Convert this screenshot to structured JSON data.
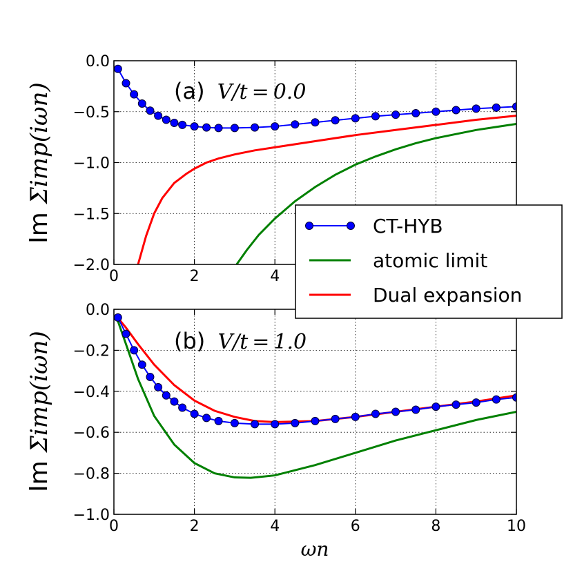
{
  "chart_data": [
    {
      "type": "line",
      "panel": "a",
      "annotation_prefix": "(a)",
      "annotation_math": "V/t = 0.0",
      "xlabel": "",
      "ylabel": "Im",
      "ylabel_math": "Σimp(iωn)",
      "xlim": [
        0,
        10
      ],
      "ylim": [
        -2.0,
        0.0
      ],
      "xticks": [
        0,
        2,
        4
      ],
      "xtick_labels": [
        "0",
        "2",
        "4"
      ],
      "yticks": [
        0.0,
        -0.5,
        -1.0,
        -1.5,
        -2.0
      ],
      "ytick_labels": [
        "0.0",
        "−0.5",
        "−1.0",
        "−1.5",
        "−2.0"
      ],
      "grid": true,
      "series": [
        {
          "name": "CT-HYB",
          "color": "#0000ff",
          "marker": "circle",
          "x": [
            0.1,
            0.3,
            0.5,
            0.7,
            0.9,
            1.1,
            1.3,
            1.5,
            1.7,
            2.0,
            2.3,
            2.6,
            3.0,
            3.5,
            4.0,
            4.5,
            5.0,
            5.5,
            6.0,
            6.5,
            7.0,
            7.5,
            8.0,
            8.5,
            9.0,
            9.5,
            10.0
          ],
          "y": [
            -0.08,
            -0.22,
            -0.33,
            -0.42,
            -0.49,
            -0.54,
            -0.58,
            -0.61,
            -0.63,
            -0.645,
            -0.655,
            -0.66,
            -0.66,
            -0.655,
            -0.645,
            -0.625,
            -0.605,
            -0.585,
            -0.565,
            -0.545,
            -0.53,
            -0.515,
            -0.5,
            -0.485,
            -0.47,
            -0.46,
            -0.45
          ]
        },
        {
          "name": "atomic limit",
          "color": "#008000",
          "x": [
            3.05,
            3.3,
            3.6,
            4.0,
            4.5,
            5.0,
            5.5,
            6.0,
            6.5,
            7.0,
            7.5,
            8.0,
            8.5,
            9.0,
            9.5,
            10.0
          ],
          "y": [
            -2.0,
            -1.86,
            -1.71,
            -1.55,
            -1.38,
            -1.24,
            -1.12,
            -1.02,
            -0.94,
            -0.87,
            -0.81,
            -0.76,
            -0.72,
            -0.68,
            -0.65,
            -0.62
          ]
        },
        {
          "name": "Dual expansion",
          "color": "#ff0000",
          "x": [
            0.6,
            0.8,
            1.0,
            1.2,
            1.5,
            1.8,
            2.0,
            2.3,
            2.6,
            3.0,
            3.5,
            4.0,
            5.0,
            6.0,
            7.0,
            8.0,
            9.0,
            10.0
          ],
          "y": [
            -2.0,
            -1.72,
            -1.5,
            -1.35,
            -1.2,
            -1.11,
            -1.06,
            -1.0,
            -0.96,
            -0.92,
            -0.88,
            -0.85,
            -0.79,
            -0.73,
            -0.68,
            -0.63,
            -0.58,
            -0.54
          ]
        }
      ],
      "legend": {
        "placement": "right",
        "entries": [
          "CT-HYB",
          "atomic limit",
          "Dual expansion"
        ]
      }
    },
    {
      "type": "line",
      "panel": "b",
      "annotation_prefix": "(b)",
      "annotation_math": "V/t = 1.0",
      "xlabel": "ωn",
      "ylabel": "Im",
      "ylabel_math": "Σimp(iωn)",
      "xlim": [
        0,
        10
      ],
      "ylim": [
        -1.0,
        0.0
      ],
      "xticks": [
        0,
        2,
        4,
        6,
        8,
        10
      ],
      "xtick_labels": [
        "0",
        "2",
        "4",
        "6",
        "8",
        "10"
      ],
      "yticks": [
        0.0,
        -0.2,
        -0.4,
        -0.6,
        -0.8,
        -1.0
      ],
      "ytick_labels": [
        "0.0",
        "−0.2",
        "−0.4",
        "−0.6",
        "−0.8",
        "−1.0"
      ],
      "grid": true,
      "series": [
        {
          "name": "CT-HYB",
          "color": "#0000ff",
          "marker": "circle",
          "x": [
            0.1,
            0.3,
            0.5,
            0.7,
            0.9,
            1.1,
            1.3,
            1.5,
            1.7,
            2.0,
            2.3,
            2.6,
            3.0,
            3.5,
            4.0,
            4.5,
            5.0,
            5.5,
            6.0,
            6.5,
            7.0,
            7.5,
            8.0,
            8.5,
            9.0,
            9.5,
            10.0
          ],
          "y": [
            -0.04,
            -0.12,
            -0.2,
            -0.27,
            -0.33,
            -0.38,
            -0.42,
            -0.45,
            -0.48,
            -0.51,
            -0.53,
            -0.545,
            -0.555,
            -0.56,
            -0.56,
            -0.555,
            -0.545,
            -0.535,
            -0.525,
            -0.51,
            -0.5,
            -0.49,
            -0.475,
            -0.465,
            -0.455,
            -0.44,
            -0.43
          ]
        },
        {
          "name": "atomic limit",
          "color": "#008000",
          "x": [
            0.05,
            0.3,
            0.6,
            1.0,
            1.5,
            2.0,
            2.5,
            3.0,
            3.4,
            4.0,
            5.0,
            6.0,
            7.0,
            8.0,
            9.0,
            10.0
          ],
          "y": [
            -0.03,
            -0.17,
            -0.34,
            -0.52,
            -0.66,
            -0.75,
            -0.8,
            -0.82,
            -0.822,
            -0.81,
            -0.76,
            -0.7,
            -0.64,
            -0.59,
            -0.54,
            -0.5
          ]
        },
        {
          "name": "Dual expansion",
          "color": "#ff0000",
          "x": [
            0.05,
            0.3,
            0.6,
            1.0,
            1.5,
            2.0,
            2.5,
            3.0,
            3.5,
            4.0,
            5.0,
            6.0,
            7.0,
            8.0,
            9.0,
            10.0
          ],
          "y": [
            -0.03,
            -0.09,
            -0.17,
            -0.27,
            -0.37,
            -0.445,
            -0.495,
            -0.525,
            -0.545,
            -0.55,
            -0.545,
            -0.525,
            -0.5,
            -0.475,
            -0.45,
            -0.42
          ]
        }
      ]
    }
  ]
}
